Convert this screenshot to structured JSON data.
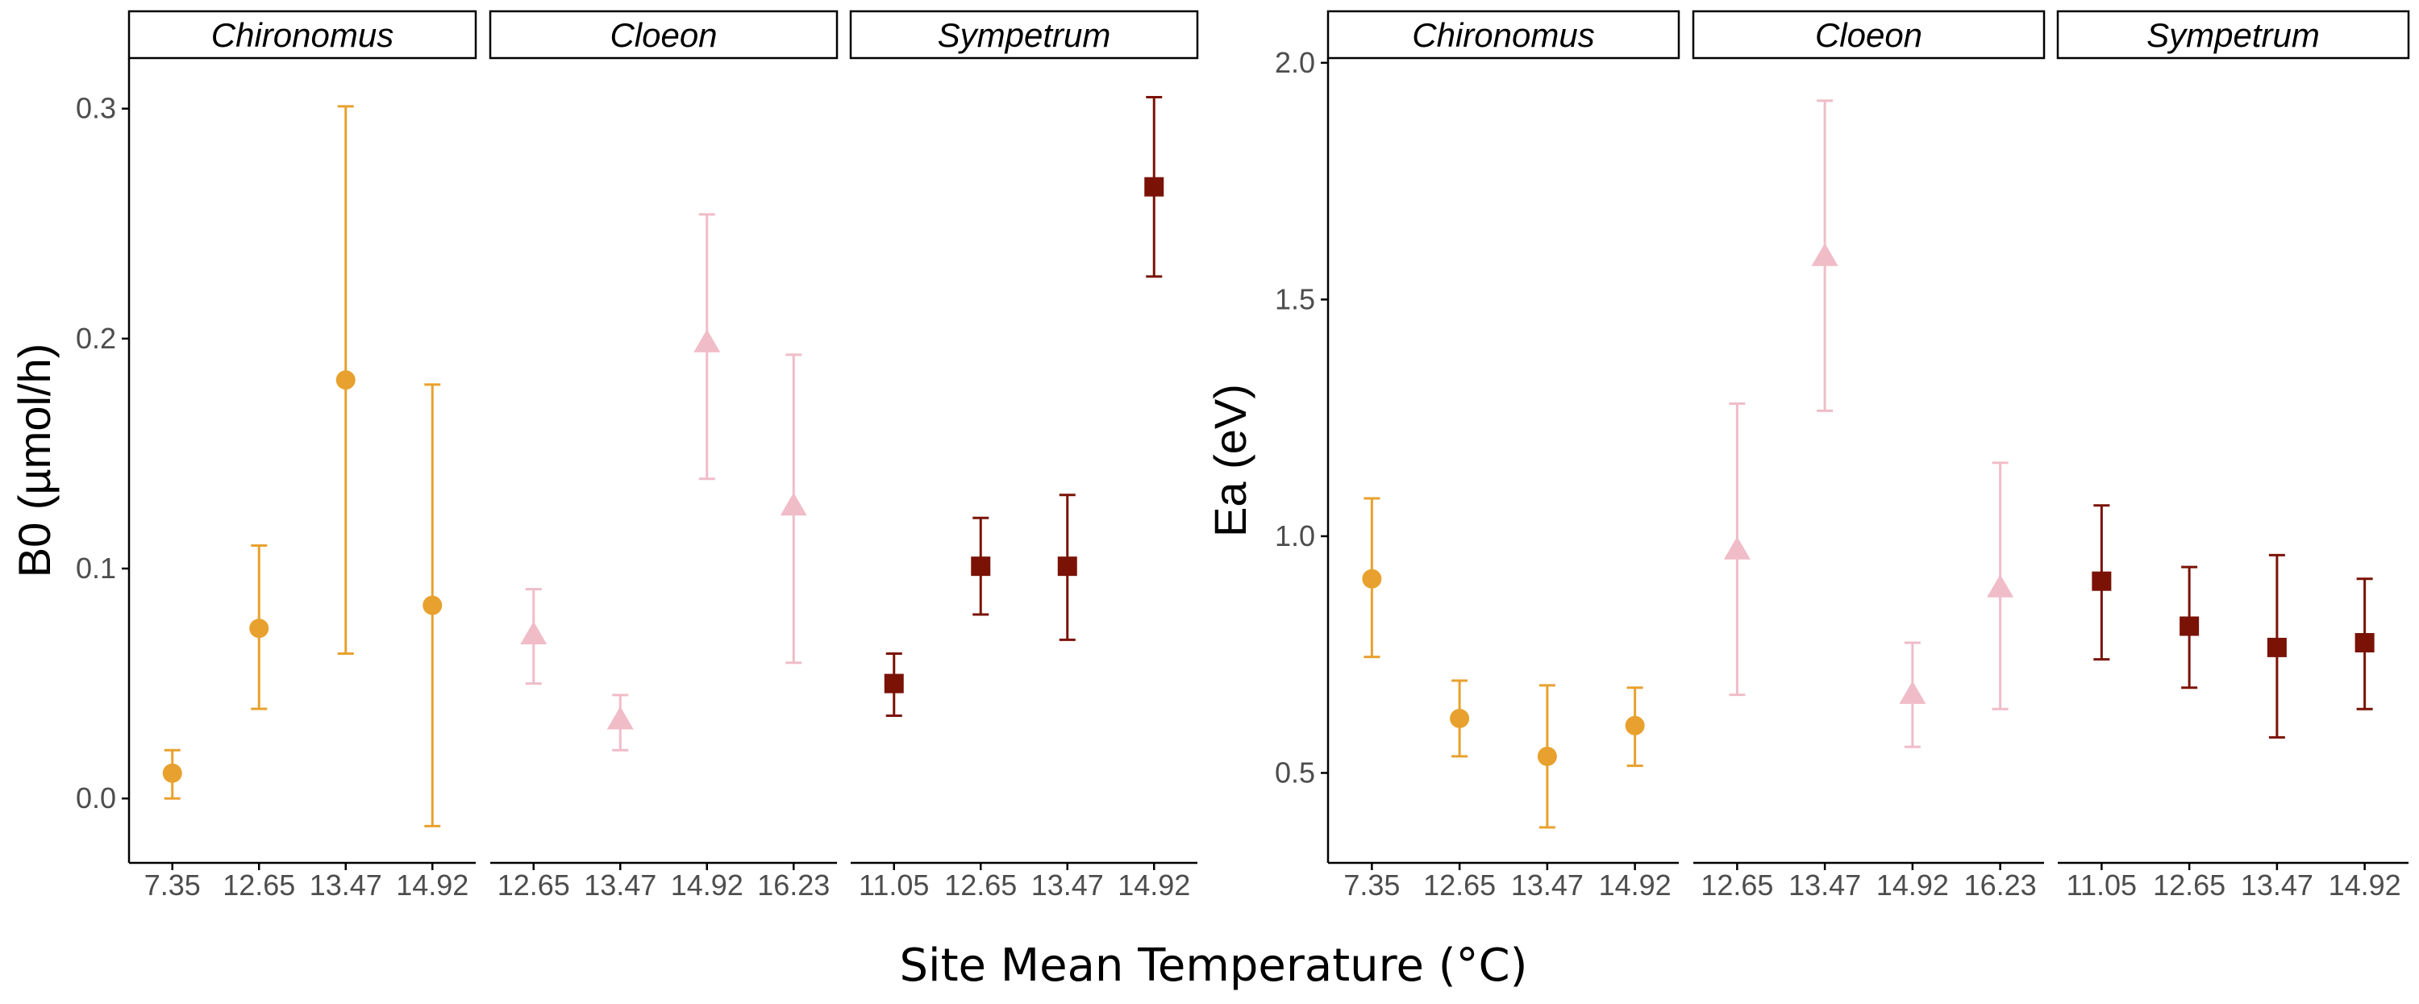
{
  "colors": {
    "Chironomus": "#e8a12e",
    "Cloeon": "#f0bcc8",
    "Sympetrum": "#7a1206",
    "axis": "#000000",
    "tick_text": "#4d4d4d"
  },
  "shapes": {
    "Chironomus": "circle",
    "Cloeon": "triangle",
    "Sympetrum": "square"
  },
  "xlabel": "Site Mean Temperature (°C)",
  "chart_data": [
    {
      "type": "scatter",
      "ylabel": "B0 (µmol/h)",
      "ylim": [
        -0.028,
        0.322
      ],
      "yticks": [
        "0.0",
        "0.1",
        "0.2",
        "0.3"
      ],
      "facets": [
        {
          "name": "Chironomus",
          "categories": [
            "7.35",
            "12.65",
            "13.47",
            "14.92"
          ],
          "y": [
            0.011,
            0.074,
            0.182,
            0.084
          ],
          "lower": [
            0.0,
            0.039,
            0.063,
            -0.012
          ],
          "upper": [
            0.021,
            0.11,
            0.301,
            0.18
          ]
        },
        {
          "name": "Cloeon",
          "categories": [
            "12.65",
            "13.47",
            "14.92",
            "16.23"
          ],
          "y": [
            0.071,
            0.034,
            0.198,
            0.127
          ],
          "lower": [
            0.05,
            0.021,
            0.139,
            0.059
          ],
          "upper": [
            0.091,
            0.045,
            0.254,
            0.193
          ]
        },
        {
          "name": "Sympetrum",
          "categories": [
            "11.05",
            "12.65",
            "13.47",
            "14.92"
          ],
          "y": [
            0.05,
            0.101,
            0.101,
            0.266
          ],
          "lower": [
            0.036,
            0.08,
            0.069,
            0.227
          ],
          "upper": [
            0.063,
            0.122,
            0.132,
            0.305
          ]
        }
      ]
    },
    {
      "type": "scatter",
      "ylabel": "Ea (eV)",
      "ylim": [
        0.31,
        2.01
      ],
      "yticks": [
        "0.5",
        "1.0",
        "1.5",
        "2.0"
      ],
      "facets": [
        {
          "name": "Chironomus",
          "categories": [
            "7.35",
            "12.65",
            "13.47",
            "14.92"
          ],
          "y": [
            0.91,
            0.615,
            0.535,
            0.6
          ],
          "lower": [
            0.745,
            0.535,
            0.385,
            0.515
          ],
          "upper": [
            1.08,
            0.695,
            0.685,
            0.68
          ]
        },
        {
          "name": "Cloeon",
          "categories": [
            "12.65",
            "13.47",
            "14.92",
            "16.23"
          ],
          "y": [
            0.97,
            1.59,
            0.665,
            0.89
          ],
          "lower": [
            0.665,
            1.265,
            0.555,
            0.635
          ],
          "upper": [
            1.28,
            1.92,
            0.775,
            1.155
          ]
        },
        {
          "name": "Sympetrum",
          "categories": [
            "11.05",
            "12.65",
            "13.47",
            "14.92"
          ],
          "y": [
            0.905,
            0.81,
            0.765,
            0.775
          ],
          "lower": [
            0.74,
            0.68,
            0.575,
            0.635
          ],
          "upper": [
            1.065,
            0.935,
            0.96,
            0.91
          ]
        }
      ]
    }
  ]
}
